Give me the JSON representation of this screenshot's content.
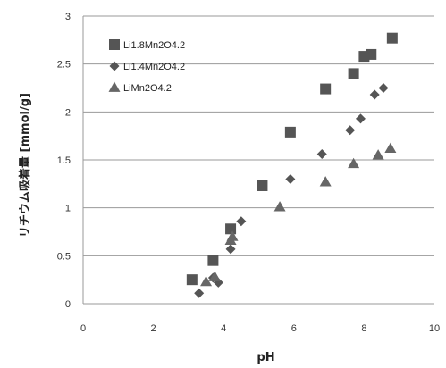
{
  "chart_data": {
    "type": "scatter",
    "title": "",
    "xlabel": "pH",
    "ylabel": "リチウム吸着量 [mmol/g]",
    "xlim": [
      0,
      10
    ],
    "ylim": [
      0,
      3
    ],
    "x_ticks": [
      "0",
      "2",
      "4",
      "6",
      "8",
      "10"
    ],
    "y_ticks": [
      "0",
      "0.5",
      "1",
      "1.5",
      "2",
      "2.5",
      "3"
    ],
    "grid": "horizontal",
    "legend_position": "top-left",
    "series": [
      {
        "name": "Li1.8Mn2O4.2",
        "marker": "square",
        "color": "#555555",
        "points": [
          {
            "x": 3.1,
            "y": 0.25
          },
          {
            "x": 3.7,
            "y": 0.45
          },
          {
            "x": 4.2,
            "y": 0.78
          },
          {
            "x": 5.1,
            "y": 1.23
          },
          {
            "x": 5.9,
            "y": 1.79
          },
          {
            "x": 6.9,
            "y": 2.24
          },
          {
            "x": 7.7,
            "y": 2.4
          },
          {
            "x": 8.0,
            "y": 2.58
          },
          {
            "x": 8.2,
            "y": 2.6
          },
          {
            "x": 8.8,
            "y": 2.77
          }
        ]
      },
      {
        "name": "Li1.4Mn2O4.2",
        "marker": "diamond",
        "color": "#555555",
        "points": [
          {
            "x": 3.3,
            "y": 0.11
          },
          {
            "x": 3.7,
            "y": 0.27
          },
          {
            "x": 3.85,
            "y": 0.22
          },
          {
            "x": 4.2,
            "y": 0.57
          },
          {
            "x": 4.5,
            "y": 0.86
          },
          {
            "x": 5.9,
            "y": 1.3
          },
          {
            "x": 6.8,
            "y": 1.56
          },
          {
            "x": 7.6,
            "y": 1.81
          },
          {
            "x": 7.9,
            "y": 1.93
          },
          {
            "x": 8.3,
            "y": 2.18
          },
          {
            "x": 8.55,
            "y": 2.25
          }
        ]
      },
      {
        "name": "LiMn2O4.2",
        "marker": "triangle",
        "color": "#666666",
        "points": [
          {
            "x": 3.5,
            "y": 0.23
          },
          {
            "x": 3.75,
            "y": 0.28
          },
          {
            "x": 4.2,
            "y": 0.66
          },
          {
            "x": 4.25,
            "y": 0.7
          },
          {
            "x": 5.6,
            "y": 1.01
          },
          {
            "x": 6.9,
            "y": 1.27
          },
          {
            "x": 7.7,
            "y": 1.46
          },
          {
            "x": 8.4,
            "y": 1.55
          },
          {
            "x": 8.75,
            "y": 1.62
          }
        ]
      }
    ]
  }
}
